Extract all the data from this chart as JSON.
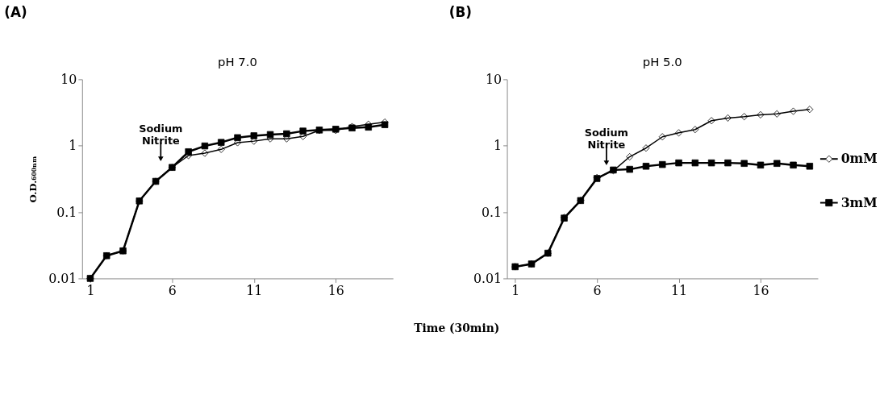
{
  "chart_data": [
    {
      "type": "line",
      "title": "(A)",
      "subtitle": "pH 7.0",
      "ylabel": "O.D.₆₀₀ₙₘ",
      "xlabel": "Time (30min)",
      "x": [
        1,
        2,
        3,
        4,
        5,
        6,
        7,
        8,
        9,
        10,
        11,
        12,
        13,
        14,
        15,
        16,
        17,
        18,
        19
      ],
      "series": [
        {
          "color": "#000000",
          "marker": "square",
          "values": [
            0.01,
            0.022,
            0.026,
            0.147,
            0.29,
            0.47,
            0.81,
            0.99,
            1.12,
            1.32,
            1.41,
            1.47,
            1.51,
            1.66,
            1.72,
            1.77,
            1.85,
            1.9,
            2.07
          ]
        },
        {
          "color": "#000000",
          "marker": "diamond",
          "values": [
            0.01,
            0.022,
            0.026,
            0.147,
            0.29,
            0.47,
            0.71,
            0.77,
            0.88,
            1.11,
            1.17,
            1.27,
            1.27,
            1.38,
            1.7,
            1.7,
            1.94,
            2.1,
            2.26
          ]
        }
      ],
      "log": "y",
      "xlim": [
        0.5,
        19.5
      ],
      "xticks": [
        1,
        6,
        11,
        16
      ],
      "ylim": [
        0.01,
        10
      ],
      "yticks": [
        0.01,
        0.1,
        1,
        10
      ],
      "grid": false,
      "legend": false,
      "annotations": [
        "Sodium Nitrite"
      ]
    },
    {
      "type": "line",
      "title": "(B)",
      "subtitle": "pH 5.0",
      "x": [
        1,
        2,
        3,
        4,
        5,
        6,
        7,
        8,
        9,
        10,
        11,
        12,
        13,
        14,
        15,
        16,
        17,
        18,
        19
      ],
      "series": [
        {
          "name": "3mM",
          "color": "#000000",
          "marker": "square",
          "values": [
            0.015,
            0.0165,
            0.024,
            0.081,
            0.149,
            0.32,
            0.43,
            0.44,
            0.49,
            0.52,
            0.55,
            0.55,
            0.55,
            0.55,
            0.54,
            0.51,
            0.54,
            0.51,
            0.49
          ]
        },
        {
          "name": "0mM",
          "color": "#000000",
          "marker": "diamond",
          "values": [
            0.015,
            0.0165,
            0.024,
            0.083,
            0.15,
            0.33,
            0.42,
            0.68,
            0.92,
            1.36,
            1.56,
            1.75,
            2.38,
            2.61,
            2.74,
            2.92,
            3.01,
            3.3,
            3.52
          ]
        }
      ],
      "log": "y",
      "xlim": [
        0.5,
        19.5
      ],
      "xticks": [
        1,
        6,
        11,
        16
      ],
      "ylim": [
        0.01,
        10
      ],
      "yticks": [
        0.01,
        0.1,
        1,
        10
      ],
      "grid": false,
      "legend": "right",
      "annotations": [
        "Sodium Nitrite"
      ]
    }
  ]
}
